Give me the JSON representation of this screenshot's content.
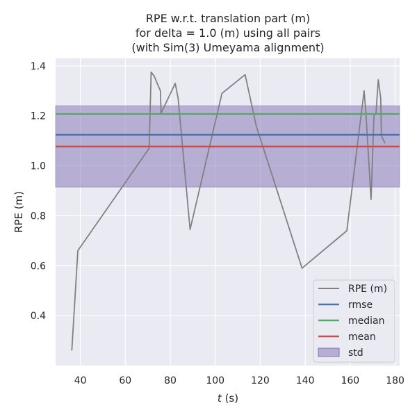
{
  "chart_data": {
    "type": "line",
    "title_lines": [
      "RPE w.r.t. translation part (m)",
      "for delta = 1.0 (m) using all pairs",
      "(with Sim(3) Umeyama alignment)"
    ],
    "xlabel_italic": "t",
    "xlabel_rest": " (s)",
    "ylabel": "RPE (m)",
    "xlim": [
      29,
      182
    ],
    "ylim": [
      0.2,
      1.43
    ],
    "xticks": [
      40,
      60,
      80,
      100,
      120,
      140,
      160,
      180
    ],
    "yticks": [
      0.4,
      0.6,
      0.8,
      1.0,
      1.2,
      1.4
    ],
    "ytick_labels": [
      "0.4",
      "0.6",
      "0.8",
      "1.0",
      "1.2",
      "1.4"
    ],
    "grid": true,
    "legend_position": "lower-right",
    "series": [
      {
        "name": "RPE (m)",
        "color": "#808080",
        "x": [
          36.2,
          38.9,
          70.6,
          71.5,
          72.8,
          75.6,
          75.9,
          82.2,
          83.5,
          88.8,
          103.0,
          113.3,
          118.2,
          138.6,
          158.5,
          166.2,
          167.0,
          169.3,
          170.6,
          171.5,
          172.5,
          173.6,
          173.9,
          175.5
        ],
        "y": [
          0.26,
          0.66,
          1.07,
          1.375,
          1.36,
          1.3,
          1.21,
          1.33,
          1.27,
          0.745,
          1.29,
          1.365,
          1.16,
          0.59,
          0.74,
          1.3,
          1.21,
          0.865,
          1.2,
          1.21,
          1.345,
          1.27,
          1.12,
          1.09
        ]
      }
    ],
    "stats": {
      "rmse": {
        "name": "rmse",
        "value": 1.124,
        "color": "#4c72b0"
      },
      "median": {
        "name": "median",
        "value": 1.207,
        "color": "#55a868"
      },
      "mean": {
        "name": "mean",
        "value": 1.077,
        "color": "#c44e52"
      },
      "std": {
        "name": "std",
        "lower": 0.915,
        "upper": 1.24,
        "color": "#8172b3"
      }
    },
    "colors": {
      "background": "#eaeaf2",
      "grid": "#ffffff",
      "text": "#262626"
    }
  }
}
